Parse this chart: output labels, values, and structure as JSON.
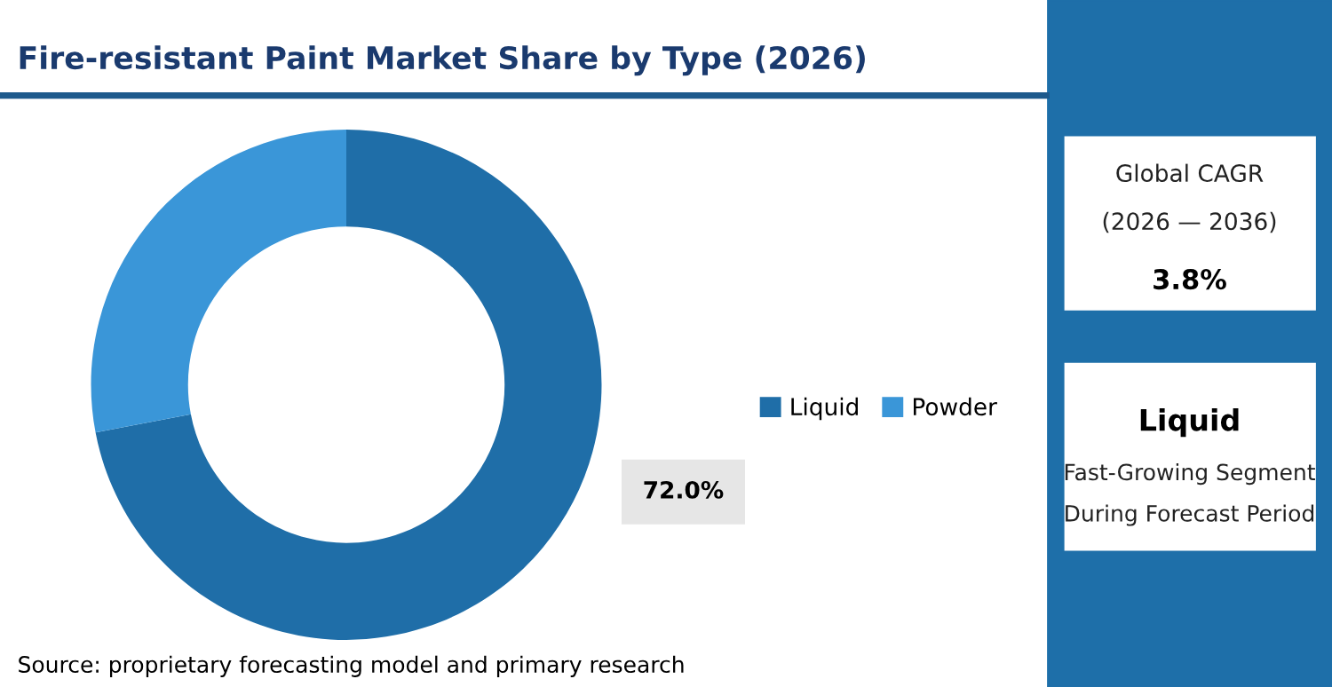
{
  "chart_data": {
    "type": "donut",
    "title": "Fire-resistant Paint Market Share by Type (2026)",
    "categories": [
      "Liquid",
      "Powder"
    ],
    "values": [
      72.0,
      28.0
    ],
    "colors": [
      "#1f6ea8",
      "#3a96d8"
    ],
    "value_labels": [
      "72.0%",
      null
    ],
    "legend": "right",
    "annotations": [
      "Source: proprietary forecasting model and primary research",
      "Global CAGR",
      "(2026 — 2036)",
      "3.8%",
      "Liquid",
      "Fast-Growing Segment",
      "During Forecast Period"
    ]
  }
}
